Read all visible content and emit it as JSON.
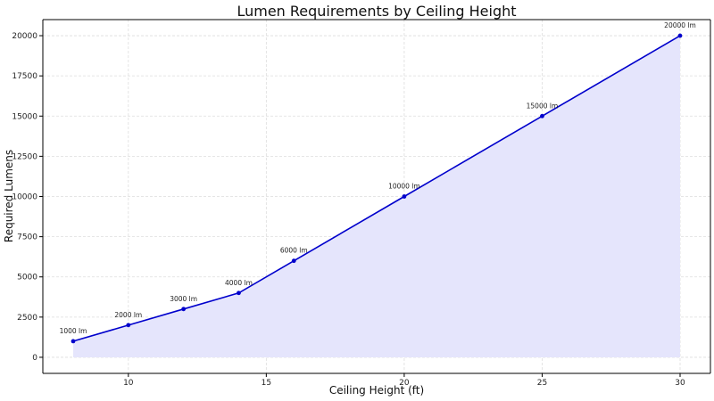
{
  "chart_data": {
    "type": "area",
    "title": "Lumen Requirements by Ceiling Height",
    "xlabel": "Ceiling Height (ft)",
    "ylabel": "Required Lumens",
    "x": [
      8,
      10,
      12,
      14,
      16,
      20,
      25,
      30
    ],
    "series": [
      {
        "values": [
          1000,
          2000,
          3000,
          4000,
          6000,
          10000,
          15000,
          20000
        ],
        "labels": [
          "1000 lm",
          "2000 lm",
          "3000 lm",
          "4000 lm",
          "6000 lm",
          "10000 lm",
          "15000 lm",
          "20000 lm"
        ],
        "color": "#0000cc",
        "fill": "#e5e5fc"
      }
    ],
    "xlim": [
      6.9,
      31.1
    ],
    "ylim": [
      -1000,
      21000
    ],
    "xticks": [
      10,
      15,
      20,
      25,
      30
    ],
    "yticks": [
      0,
      2500,
      5000,
      7500,
      10000,
      12500,
      15000,
      17500,
      20000
    ],
    "grid": true
  }
}
